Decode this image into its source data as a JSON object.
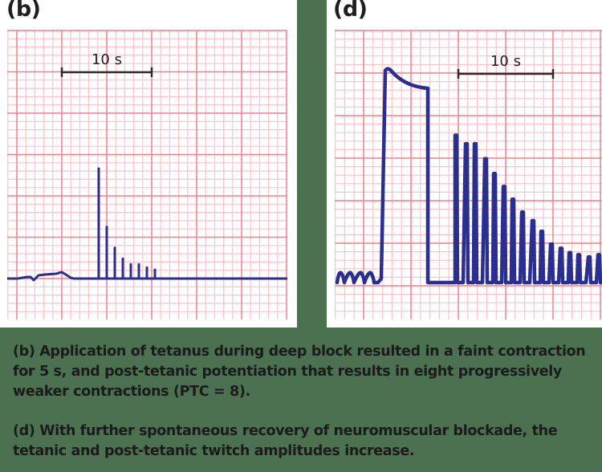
{
  "panels": {
    "b": {
      "label": "(b)",
      "scale_bar_label": "10 s"
    },
    "d": {
      "label": "(d)",
      "scale_bar_label": "10 s"
    }
  },
  "captions": {
    "b": "(b) Application of tetanus during deep block resulted in a faint contraction for 5 s, and post-tetanic potentiation that results in eight progressively weaker contractions (PTC = 8).",
    "d": "(d) With further spontaneous recovery of neuromuscular blockade, the tetanic and post-tetanic twitch amplitudes increase."
  },
  "colors": {
    "background": "#4b7150",
    "grid_major": "#f0828f",
    "grid_minor": "#f9c4ca",
    "trace": "#2a2f8f",
    "scale_bar": "#2b2b2b",
    "text": "#1b1b1b"
  },
  "chart_data": [
    {
      "type": "line",
      "title": "(b)",
      "description": "Neuromuscular monitoring trace on grid paper: faint tetanic contraction for 5 s followed by post-tetanic count of 8 progressively weaker twitches",
      "scale_bar": {
        "label": "10 s",
        "span_major_divisions": 2
      },
      "grid": true,
      "baseline_level": 0,
      "tetanus_fade": {
        "duration_s": 5,
        "relative_height": 0.1
      },
      "post_tetanic_twitches": {
        "count": 8,
        "relative_heights": [
          1.0,
          0.47,
          0.28,
          0.18,
          0.13,
          0.13,
          0.1,
          0.08
        ]
      },
      "annotation": "PTC = 8"
    },
    {
      "type": "line",
      "title": "(d)",
      "description": "Trace on grid paper: small train-of-four twitches, sustained tetanic contraction with peak and fade, then post-tetanic twitches decreasing in amplitude",
      "scale_bar": {
        "label": "10 s",
        "span_major_divisions": 2
      },
      "grid": true,
      "baseline_level": 0,
      "pre_tetanic_twitches": {
        "count": 4,
        "relative_height": 0.05
      },
      "tetanus": {
        "peak_relative": 1.0,
        "end_relative": 0.91
      },
      "post_tetanic_twitches": {
        "count": 16,
        "relative_heights": [
          0.69,
          0.65,
          0.65,
          0.58,
          0.51,
          0.45,
          0.39,
          0.33,
          0.29,
          0.24,
          0.18,
          0.16,
          0.14,
          0.13,
          0.12,
          0.13
        ]
      }
    }
  ]
}
